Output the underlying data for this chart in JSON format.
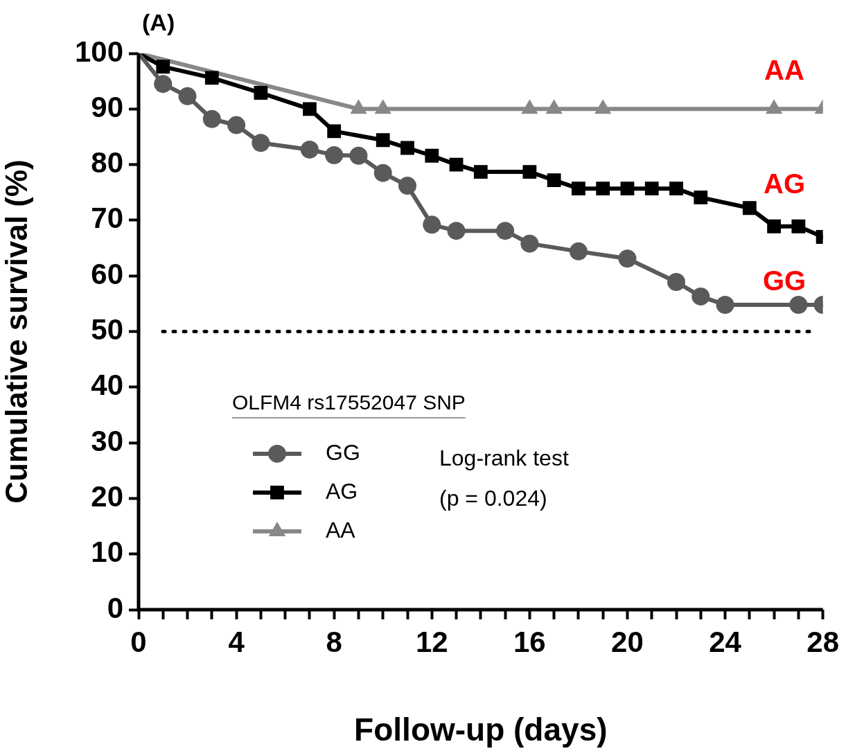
{
  "chart_data": {
    "type": "line",
    "xlabel": "Follow-up (days)",
    "ylabel": "Cumulative survival (%)",
    "legend_title": "OLFM4 rs17552047 SNP",
    "xlim": [
      0,
      28
    ],
    "xticks": [
      0,
      {
        "value": 1,
        "label": null
      },
      {
        "value": 2,
        "label": null
      },
      {
        "value": 3,
        "label": null
      },
      4,
      {
        "value": 5,
        "label": null
      },
      {
        "value": 6,
        "label": null
      },
      {
        "value": 7,
        "label": null
      },
      8,
      {
        "value": 9,
        "label": null
      },
      {
        "value": 10,
        "label": null
      },
      {
        "value": 11,
        "label": null
      },
      12,
      {
        "value": 13,
        "label": null
      },
      {
        "value": 14,
        "label": null
      },
      {
        "value": 15,
        "label": null
      },
      16,
      {
        "value": 17,
        "label": null
      },
      {
        "value": 18,
        "label": null
      },
      {
        "value": 19,
        "label": null
      },
      20,
      {
        "value": 21,
        "label": null
      },
      {
        "value": 22,
        "label": null
      },
      {
        "value": 23,
        "label": null
      },
      24,
      {
        "value": 25,
        "label": null
      },
      {
        "value": 26,
        "label": null
      },
      {
        "value": 27,
        "label": null
      },
      28
    ],
    "ylim": [
      0,
      100
    ],
    "yticks": [
      0,
      10,
      20,
      30,
      40,
      50,
      60,
      70,
      80,
      90,
      100
    ],
    "grid": false,
    "legend": "bottom left",
    "line_style": "solid",
    "series": [
      {
        "name": "GG",
        "color": "#5a5a5a",
        "marker": "circle",
        "x": [
          0,
          1,
          2,
          3,
          4,
          5,
          7,
          8,
          9,
          10,
          11,
          12,
          13,
          15,
          16,
          18,
          20,
          22,
          23,
          24,
          27,
          28
        ],
        "values": [
          100,
          94.5,
          92.3,
          88.2,
          87.1,
          83.9,
          82.7,
          81.7,
          81.6,
          78.5,
          76.2,
          69.2,
          68.1,
          68.1,
          65.8,
          64.4,
          63.1,
          58.9,
          56.3,
          54.8,
          54.8,
          54.8
        ]
      },
      {
        "name": "AG",
        "color": "#000000",
        "marker": "square",
        "x": [
          0,
          1,
          3,
          5,
          7,
          8,
          10,
          11,
          12,
          13,
          14,
          16,
          17,
          18,
          19,
          20,
          21,
          22,
          23,
          25,
          26,
          27,
          28
        ],
        "values": [
          100,
          97.6,
          95.6,
          92.9,
          90,
          86,
          84.4,
          83,
          81.6,
          80,
          78.7,
          78.7,
          77.2,
          75.7,
          75.7,
          75.7,
          75.7,
          75.7,
          74.1,
          72.2,
          68.9,
          68.9,
          67
        ]
      },
      {
        "name": "AA",
        "color": "#888888",
        "marker": "triangle",
        "x": [
          0,
          9,
          10,
          16,
          17,
          19,
          26,
          28
        ],
        "values": [
          100,
          90,
          90,
          90,
          90,
          90,
          90,
          90
        ]
      }
    ],
    "ref_lines": [
      {
        "axis": "y",
        "value": 50,
        "line_style": "dotted",
        "color": "#000000"
      }
    ],
    "annotations": [
      "(A)",
      "Log-rank test\n(p = 0.024)",
      "AA",
      "AG",
      "GG"
    ]
  }
}
